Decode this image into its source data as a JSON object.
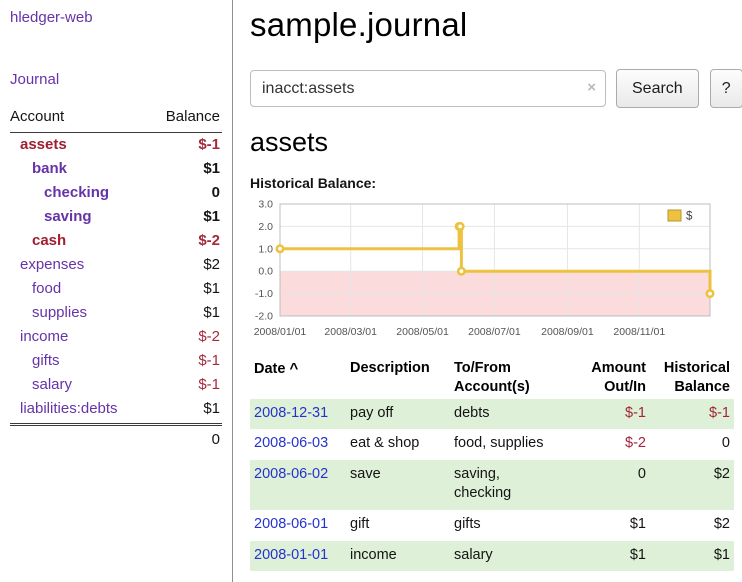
{
  "app": {
    "brand": "hledger-web"
  },
  "colors": {
    "link_purple": "#6633a8",
    "negative_red": "#a52a3c",
    "account_red": "#9e2030",
    "date_link_blue": "#2433cc",
    "row_highlight_green": "#dff0d8",
    "chart_series_gold": "#EDC240",
    "chart_negative_region_pink": "#fbdbdb"
  },
  "sidebar": {
    "journal_link": "Journal",
    "accounts": {
      "account_header": "Account",
      "balance_header": "Balance",
      "rows": [
        {
          "name": "assets",
          "balance": "$-1",
          "indent": 1,
          "bold": true,
          "red": true,
          "negative": true
        },
        {
          "name": "bank",
          "balance": "$1",
          "indent": 2,
          "bold": true,
          "red": false,
          "negative": false
        },
        {
          "name": "checking",
          "balance": "0",
          "indent": 3,
          "bold": true,
          "red": false,
          "negative": false
        },
        {
          "name": "saving",
          "balance": "$1",
          "indent": 3,
          "bold": true,
          "red": false,
          "negative": false
        },
        {
          "name": "cash",
          "balance": "$-2",
          "indent": 2,
          "bold": true,
          "red": true,
          "negative": true
        },
        {
          "name": "expenses",
          "balance": "$2",
          "indent": 1,
          "bold": false,
          "red": false,
          "negative": false
        },
        {
          "name": "food",
          "balance": "$1",
          "indent": 2,
          "bold": false,
          "red": false,
          "negative": false
        },
        {
          "name": "supplies",
          "balance": "$1",
          "indent": 2,
          "bold": false,
          "red": false,
          "negative": false
        },
        {
          "name": "income",
          "balance": "$-2",
          "indent": 1,
          "bold": false,
          "red": false,
          "negative": true
        },
        {
          "name": "gifts",
          "balance": "$-1",
          "indent": 2,
          "bold": false,
          "red": false,
          "negative": true
        },
        {
          "name": "salary",
          "balance": "$-1",
          "indent": 2,
          "bold": false,
          "red": false,
          "negative": true
        },
        {
          "name": "liabilities:debts",
          "balance": "$1",
          "indent": 1,
          "bold": false,
          "red": false,
          "negative": false
        }
      ],
      "total": "0"
    }
  },
  "main": {
    "title": "sample.journal",
    "search": {
      "value": "inacct:assets",
      "clear_icon": "×",
      "button_label": "Search",
      "help_label": "?"
    },
    "account_heading": "assets",
    "chart_label": "Historical Balance:"
  },
  "chart_data": {
    "type": "line",
    "title": "Historical Balance",
    "x_start": "2008-01-01",
    "x_domain_days": [
      0,
      365
    ],
    "ylim": [
      -2,
      3
    ],
    "y_ticks": [
      3.0,
      2.0,
      1.0,
      0.0,
      -1.0,
      -2.0
    ],
    "x_ticks": [
      "2008/01/01",
      "2008/03/01",
      "2008/05/01",
      "2008/07/01",
      "2008/09/01",
      "2008/11/01"
    ],
    "grid": true,
    "legend_position": "top-right",
    "negative_region_color": "#fbdbdb",
    "series": [
      {
        "name": "$",
        "color": "#EDC240",
        "style": "step",
        "points": [
          {
            "x": "2008-01-01",
            "y": 1
          },
          {
            "x": "2008-06-01",
            "y": 2
          },
          {
            "x": "2008-06-02",
            "y": 2
          },
          {
            "x": "2008-06-03",
            "y": 0
          },
          {
            "x": "2008-12-31",
            "y": -1
          }
        ]
      }
    ]
  },
  "register": {
    "headers": {
      "date": "Date",
      "sort_indicator": "^",
      "description": "Description",
      "accounts_line1": "To/From",
      "accounts_line2": "Account(s)",
      "amount_line1": "Amount",
      "amount_line2": "Out/In",
      "balance_line1": "Historical",
      "balance_line2": "Balance"
    },
    "rows": [
      {
        "date": "2008-12-31",
        "description": "pay off",
        "accounts": "debts",
        "amount": "$-1",
        "amount_negative": true,
        "balance": "$-1",
        "balance_negative": true,
        "shaded": true
      },
      {
        "date": "2008-06-03",
        "description": "eat & shop",
        "accounts": "food, supplies",
        "amount": "$-2",
        "amount_negative": true,
        "balance": "0",
        "balance_negative": false,
        "shaded": false
      },
      {
        "date": "2008-06-02",
        "description": "save",
        "accounts": "saving,\nchecking",
        "amount": "0",
        "amount_negative": false,
        "balance": "$2",
        "balance_negative": false,
        "shaded": true
      },
      {
        "date": "2008-06-01",
        "description": "gift",
        "accounts": "gifts",
        "amount": "$1",
        "amount_negative": false,
        "balance": "$2",
        "balance_negative": false,
        "shaded": false
      },
      {
        "date": "2008-01-01",
        "description": "income",
        "accounts": "salary",
        "amount": "$1",
        "amount_negative": false,
        "balance": "$1",
        "balance_negative": false,
        "shaded": true
      }
    ]
  }
}
